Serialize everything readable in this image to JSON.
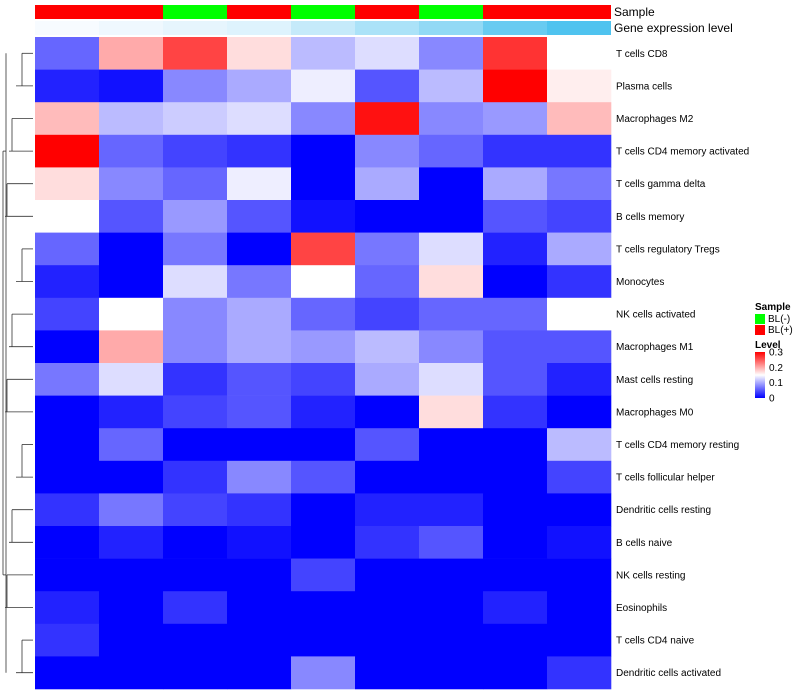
{
  "chart_data": {
    "type": "heatmap",
    "annotation_rows": [
      {
        "name": "Sample",
        "type": "categorical",
        "values": [
          "BL(+)",
          "BL(+)",
          "BL(-)",
          "BL(+)",
          "BL(-)",
          "BL(+)",
          "BL(-)",
          "BL(+)",
          "BL(+)"
        ]
      },
      {
        "name": "Gene expression level",
        "type": "continuous",
        "values": [
          0.0,
          0.05,
          0.1,
          0.15,
          0.3,
          0.45,
          0.6,
          0.85,
          1.0
        ]
      }
    ],
    "rows": [
      "T cells CD8",
      "Plasma cells",
      "Macrophages M2",
      "T cells CD4 memory activated",
      "T cells gamma delta",
      "B cells memory",
      "T cells regulatory  Tregs",
      "Monocytes",
      "NK cells activated",
      "Macrophages M1",
      "Mast cells resting",
      "Macrophages M0",
      "T cells CD4 memory resting",
      "T cells follicular helper",
      "Dendritic cells resting",
      "B cells naive",
      "NK cells resting",
      "Eosinophils",
      "T cells CD4 naive",
      "Dendritic cells activated"
    ],
    "values": [
      [
        0.06,
        0.2,
        0.26,
        0.17,
        0.11,
        0.13,
        0.08,
        0.27,
        0.15
      ],
      [
        0.02,
        0.01,
        0.08,
        0.1,
        0.14,
        0.05,
        0.11,
        0.3,
        0.16
      ],
      [
        0.19,
        0.11,
        0.12,
        0.13,
        0.08,
        0.29,
        0.08,
        0.09,
        0.19
      ],
      [
        0.3,
        0.06,
        0.04,
        0.03,
        0.0,
        0.08,
        0.06,
        0.03,
        0.03
      ],
      [
        0.17,
        0.08,
        0.06,
        0.14,
        0.0,
        0.1,
        0.0,
        0.1,
        0.07
      ],
      [
        0.15,
        0.05,
        0.09,
        0.05,
        0.01,
        0.0,
        0.0,
        0.05,
        0.04
      ],
      [
        0.06,
        0.0,
        0.07,
        0.0,
        0.26,
        0.07,
        0.13,
        0.02,
        0.1
      ],
      [
        0.02,
        0.0,
        0.13,
        0.07,
        0.15,
        0.06,
        0.17,
        0.0,
        0.03
      ],
      [
        0.04,
        0.15,
        0.08,
        0.1,
        0.06,
        0.04,
        0.06,
        0.06,
        0.15
      ],
      [
        0.0,
        0.2,
        0.08,
        0.1,
        0.09,
        0.11,
        0.08,
        0.05,
        0.05
      ],
      [
        0.07,
        0.13,
        0.03,
        0.05,
        0.04,
        0.1,
        0.13,
        0.05,
        0.02
      ],
      [
        0.0,
        0.02,
        0.04,
        0.05,
        0.02,
        0.0,
        0.17,
        0.03,
        0.0
      ],
      [
        0.0,
        0.06,
        0.0,
        0.0,
        0.0,
        0.05,
        0.0,
        0.0,
        0.11
      ],
      [
        0.0,
        0.0,
        0.03,
        0.08,
        0.05,
        0.0,
        0.0,
        0.0,
        0.04
      ],
      [
        0.03,
        0.07,
        0.04,
        0.03,
        0.0,
        0.02,
        0.02,
        0.0,
        0.0
      ],
      [
        0.0,
        0.02,
        0.0,
        0.01,
        0.0,
        0.03,
        0.05,
        0.0,
        0.01
      ],
      [
        0.0,
        0.0,
        0.0,
        0.0,
        0.04,
        0.0,
        0.0,
        0.0,
        0.0
      ],
      [
        0.02,
        0.0,
        0.03,
        0.0,
        0.0,
        0.0,
        0.0,
        0.02,
        0.0
      ],
      [
        0.03,
        0.0,
        0.0,
        0.0,
        0.0,
        0.0,
        0.0,
        0.0,
        0.0
      ],
      [
        0.0,
        0.0,
        0.0,
        0.0,
        0.08,
        0.0,
        0.0,
        0.0,
        0.03
      ]
    ],
    "color_scale": {
      "range": [
        0,
        0.3
      ],
      "colors": [
        "#0000ff",
        "#ffffff",
        "#ff0000"
      ],
      "midpoint": 0.15
    },
    "row_dendrogram": true,
    "legend_placement": "right",
    "legends": [
      {
        "title": "Sample",
        "entries": [
          {
            "label": "BL(-)",
            "color": "#00ff00"
          },
          {
            "label": "BL(+)",
            "color": "#ff0000"
          }
        ]
      },
      {
        "title": "Level",
        "ticks": [
          "0.3",
          "0.2",
          "0.1",
          "0"
        ],
        "tick_values": [
          0.3,
          0.2,
          0.1,
          0
        ]
      }
    ],
    "annotation_colors": {
      "Sample": {
        "BL(-)": "#00ff00",
        "BL(+)": "#ff0000"
      },
      "Gene expression level": [
        "#f7fbff",
        "#4fc3ef"
      ]
    }
  }
}
